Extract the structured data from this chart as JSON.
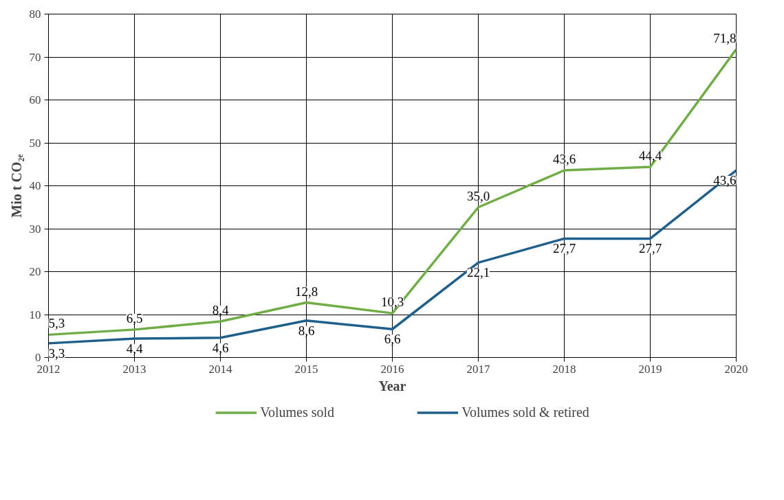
{
  "chart_data": {
    "type": "line",
    "xlabel": "Year",
    "ylabel": "Mio t CO₂ₑ",
    "x": [
      2012,
      2013,
      2014,
      2015,
      2016,
      2017,
      2018,
      2019,
      2020
    ],
    "series": [
      {
        "name": "Volumes sold",
        "color": "#70ad47",
        "values": [
          5.3,
          6.5,
          8.4,
          12.8,
          10.3,
          35.0,
          43.6,
          44.4,
          71.8
        ],
        "value_labels": [
          "5,3",
          "6,5",
          "8,4",
          "12,8",
          "10,3",
          "35,0",
          "43,6",
          "44,4",
          "71,8"
        ]
      },
      {
        "name": "Volumes sold & retired",
        "color": "#1f5f8b",
        "values": [
          3.3,
          4.4,
          4.6,
          8.6,
          6.6,
          22.1,
          27.7,
          27.7,
          43.6
        ],
        "value_labels": [
          "3,3",
          "4,4",
          "4,6",
          "8,6",
          "6,6",
          "22,1",
          "27,7",
          "27,7",
          "43,6"
        ]
      }
    ],
    "xlim": [
      2012,
      2020
    ],
    "xticks": [
      2012,
      2013,
      2014,
      2015,
      2016,
      2017,
      2018,
      2019,
      2020
    ],
    "ylim": [
      0,
      80
    ],
    "yticks": [
      0,
      10,
      20,
      30,
      40,
      50,
      60,
      70,
      80
    ],
    "grid": true,
    "legend": "bottom",
    "marker": "none",
    "line_style": "solid"
  }
}
